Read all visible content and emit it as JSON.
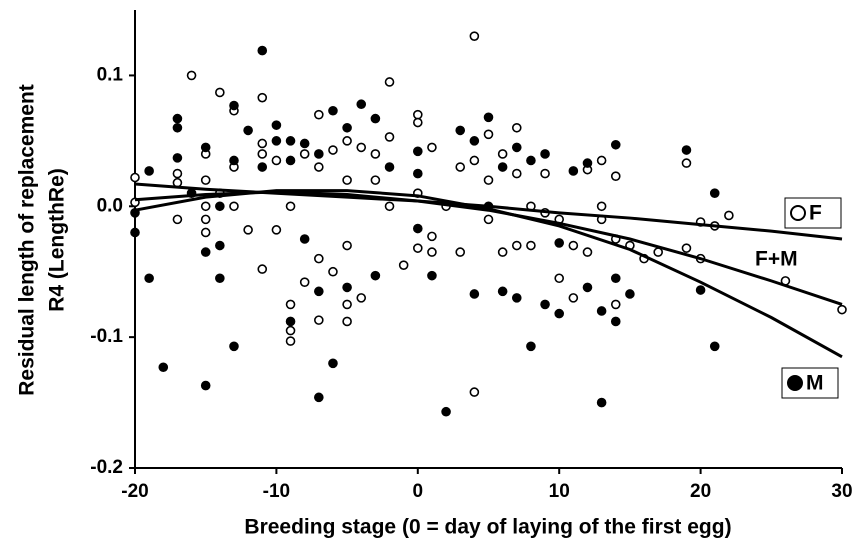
{
  "chart_data": {
    "type": "scatter",
    "xlabel": "Breeding stage (0 = day of laying of the first egg)",
    "ylabel": [
      "Residual  length of replacement",
      "R4 (LengthRe)"
    ],
    "xlim": [
      -20,
      30
    ],
    "ylim": [
      -0.2,
      0.15
    ],
    "xticks": [
      -20,
      -10,
      0,
      10,
      20,
      30
    ],
    "yticks": [
      0.1,
      {
        "value": 0,
        "label": "0.0"
      },
      -0.1,
      -0.2
    ],
    "series": [
      {
        "name": "F",
        "color": "#000000",
        "marker": "open",
        "x": [
          -20,
          -20,
          -17,
          -17,
          -17,
          -16,
          -15,
          -15,
          -15,
          -15,
          -15,
          -14,
          -14,
          -13,
          -13,
          -13,
          -12,
          -11,
          -11,
          -11,
          -11,
          -10,
          -10,
          -9,
          -9,
          -9,
          -9,
          -8,
          -8,
          -7,
          -7,
          -7,
          -7,
          -6,
          -6,
          -5,
          -5,
          -5,
          -5,
          -5,
          -4,
          -4,
          -3,
          -3,
          -2,
          -2,
          -2,
          -1,
          0,
          0,
          0,
          0,
          1,
          1,
          1,
          2,
          3,
          3,
          4,
          4,
          4,
          5,
          5,
          5,
          6,
          6,
          7,
          7,
          7,
          8,
          8,
          9,
          9,
          10,
          10,
          11,
          11,
          12,
          12,
          13,
          13,
          13,
          14,
          14,
          14,
          15,
          16,
          17,
          19,
          19,
          20,
          20,
          21,
          22,
          26,
          30
        ],
        "values": [
          0.022,
          0.003,
          0.025,
          0.018,
          -0.01,
          0.1,
          0.04,
          0.02,
          0,
          -0.01,
          -0.02,
          0.087,
          0.01,
          0.073,
          0.03,
          0,
          -0.018,
          0.083,
          0.048,
          0.04,
          -0.048,
          0.035,
          -0.018,
          0,
          -0.075,
          -0.095,
          -0.103,
          0.04,
          -0.058,
          0.07,
          0.03,
          -0.04,
          -0.087,
          0.043,
          -0.05,
          0.05,
          0.02,
          -0.03,
          -0.075,
          -0.088,
          0.045,
          -0.07,
          0.04,
          0.02,
          0.095,
          0.053,
          0,
          -0.045,
          0.07,
          0.064,
          0.01,
          -0.032,
          0.045,
          -0.023,
          -0.035,
          0,
          0.03,
          -0.035,
          0.13,
          0.035,
          -0.142,
          0.055,
          0.02,
          -0.01,
          0.04,
          -0.035,
          0.06,
          0.025,
          -0.03,
          0,
          -0.03,
          0.025,
          -0.005,
          -0.055,
          -0.01,
          -0.07,
          -0.03,
          0.028,
          -0.035,
          0.035,
          0,
          -0.01,
          0.023,
          -0.025,
          -0.075,
          -0.03,
          -0.04,
          -0.035,
          0.033,
          -0.032,
          -0.012,
          -0.04,
          -0.015,
          -0.007,
          -0.057,
          -0.079
        ]
      },
      {
        "name": "M",
        "color": "#000000",
        "marker": "filled",
        "x": [
          -20,
          -20,
          -19,
          -19,
          -18,
          -17,
          -17,
          -17,
          -16,
          -15,
          -15,
          -15,
          -14,
          -14,
          -14,
          -13,
          -13,
          -13,
          -12,
          -11,
          -11,
          -10,
          -10,
          -9,
          -9,
          -9,
          -8,
          -8,
          -7,
          -7,
          -7,
          -6,
          -6,
          -5,
          -5,
          -4,
          -3,
          -3,
          -2,
          0,
          0,
          0,
          1,
          2,
          3,
          4,
          4,
          5,
          5,
          6,
          6,
          7,
          7,
          8,
          8,
          9,
          9,
          10,
          10,
          11,
          12,
          12,
          13,
          13,
          14,
          14,
          14,
          15,
          19,
          20,
          21,
          21
        ],
        "values": [
          -0.005,
          -0.02,
          0.027,
          -0.055,
          -0.123,
          0.067,
          0.06,
          0.037,
          0.01,
          0.045,
          -0.035,
          -0.137,
          0,
          -0.03,
          -0.055,
          0.077,
          0.035,
          -0.107,
          0.058,
          0.119,
          0.03,
          0.062,
          0.05,
          0.05,
          0.035,
          -0.088,
          0.048,
          -0.025,
          0.04,
          -0.065,
          -0.146,
          0.073,
          -0.12,
          0.06,
          -0.062,
          0.078,
          0.067,
          -0.053,
          0.03,
          0.042,
          0.025,
          -0.017,
          -0.053,
          -0.157,
          0.058,
          0.05,
          -0.067,
          0.068,
          0,
          0.03,
          -0.065,
          0.045,
          -0.07,
          0.035,
          -0.107,
          0.04,
          -0.075,
          -0.082,
          -0.028,
          0.027,
          0.033,
          -0.062,
          -0.08,
          -0.15,
          0.047,
          -0.055,
          -0.088,
          -0.067,
          0.043,
          -0.064,
          0.01,
          -0.107
        ]
      }
    ],
    "fits": [
      {
        "x": [
          -20,
          -15,
          -10,
          -5,
          0,
          5,
          10,
          15,
          20,
          25,
          30
        ],
        "values": [
          0.017,
          0.013,
          0.01,
          0.007,
          0.004,
          0,
          -0.005,
          -0.009,
          -0.014,
          -0.019,
          -0.025
        ]
      },
      {
        "label": "F+M",
        "x": [
          -20,
          -15,
          -10,
          -5,
          0,
          5,
          10,
          15,
          20,
          25,
          30
        ],
        "values": [
          0.005,
          0.009,
          0.011,
          0.009,
          0.004,
          -0.003,
          -0.013,
          -0.025,
          -0.04,
          -0.057,
          -0.075
        ]
      },
      {
        "x": [
          -20,
          -15,
          -10,
          -5,
          0,
          5,
          10,
          15,
          20,
          25,
          30
        ],
        "values": [
          -0.003,
          0.007,
          0.012,
          0.012,
          0.008,
          -0.002,
          -0.015,
          -0.033,
          -0.058,
          -0.085,
          -0.115
        ]
      }
    ]
  }
}
